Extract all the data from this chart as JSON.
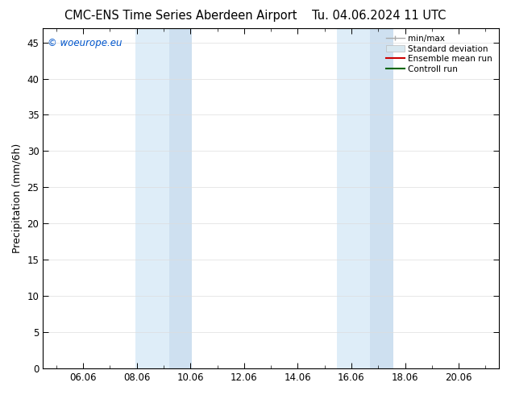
{
  "title_left": "CMC-ENS Time Series Aberdeen Airport",
  "title_right": "Tu. 04.06.2024 11 UTC",
  "ylabel": "Precipitation (mm/6h)",
  "watermark": "© woeurope.eu",
  "watermark_color": "#0055cc",
  "xlim_start": 4.5,
  "xlim_end": 21.5,
  "ylim_bottom": 0,
  "ylim_top": 47,
  "yticks": [
    0,
    5,
    10,
    15,
    20,
    25,
    30,
    35,
    40,
    45
  ],
  "xtick_labels": [
    "06.06",
    "08.06",
    "10.06",
    "12.06",
    "14.06",
    "16.06",
    "18.06",
    "20.06"
  ],
  "xtick_positions": [
    6,
    8,
    10,
    12,
    14,
    16,
    18,
    20
  ],
  "shaded_bands": [
    {
      "x_start": 7.95,
      "x_end": 9.2,
      "color": "#deedf8"
    },
    {
      "x_start": 9.2,
      "x_end": 10.05,
      "color": "#cee0f0"
    },
    {
      "x_start": 15.45,
      "x_end": 16.7,
      "color": "#deedf8"
    },
    {
      "x_start": 16.7,
      "x_end": 17.55,
      "color": "#cee0f0"
    }
  ],
  "legend_labels": [
    "min/max",
    "Standard deviation",
    "Ensemble mean run",
    "Controll run"
  ],
  "legend_colors_line": [
    "#999999",
    "#cccccc",
    "#ff0000",
    "#007700"
  ],
  "bg_color": "#ffffff",
  "plot_bg_color": "#ffffff",
  "grid_color": "#dddddd",
  "tick_label_fontsize": 8.5,
  "axis_label_fontsize": 9,
  "title_fontsize": 10.5
}
